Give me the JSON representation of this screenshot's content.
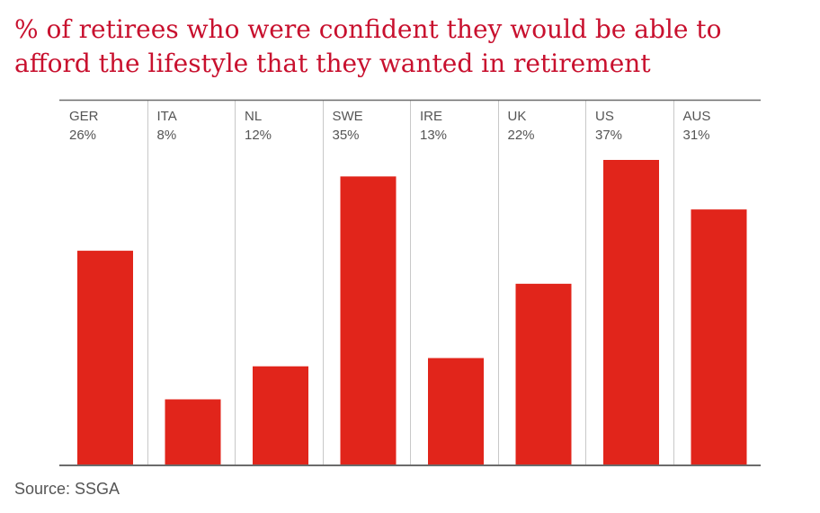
{
  "chart_data": {
    "type": "bar",
    "title": "% of retirees who were confident they would be able to afford the lifestyle that they wanted in retirement",
    "categories": [
      "GER",
      "ITA",
      "NL",
      "SWE",
      "IRE",
      "UK",
      "US",
      "AUS"
    ],
    "values": [
      26,
      8,
      12,
      35,
      13,
      22,
      37,
      31
    ],
    "value_labels": [
      "26%",
      "8%",
      "12%",
      "35%",
      "13%",
      "22%",
      "37%",
      "31%"
    ],
    "ylim": [
      0,
      37
    ],
    "grid": "vertical-separators",
    "legend": "none",
    "bar_color": "#e1251b",
    "axis_color": "#6b6b6b",
    "separator_color": "#c8c8c8"
  },
  "source": "Source: SSGA",
  "colors": {
    "title": "#c8102e",
    "label": "#555555"
  }
}
